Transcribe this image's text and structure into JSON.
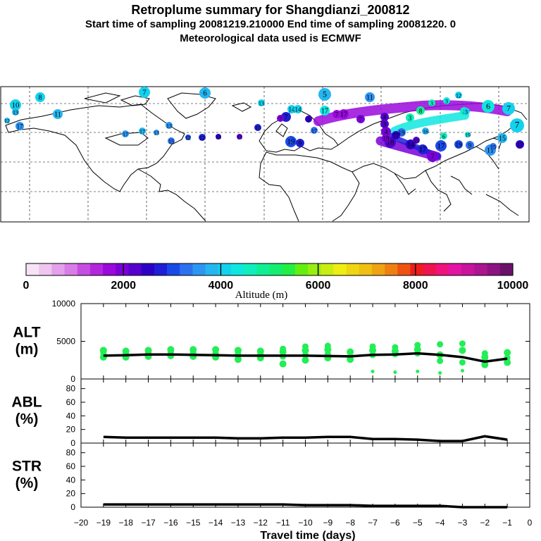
{
  "header": {
    "title": "Retroplume summary for Shangdianzi_200812",
    "subtitle1": "Start time of sampling 20081219.210000      End time of sampling 20081220.      0",
    "subtitle2": "Meteorological data used is ECMWF"
  },
  "colorbar": {
    "label": "Altitude (m)",
    "ticks": [
      "0",
      "2000",
      "4000",
      "6000",
      "8000",
      "10000"
    ],
    "colors": [
      "#f6e3f6",
      "#eec6ee",
      "#e4a0ea",
      "#d77ee6",
      "#c74ee2",
      "#b327dc",
      "#9a08dc",
      "#7a00d8",
      "#5500cc",
      "#2d00c6",
      "#1f1fd8",
      "#1a4ae6",
      "#2c72ee",
      "#2d95f2",
      "#24b6f0",
      "#12d2ee",
      "#10e6e0",
      "#10eebb",
      "#10ee94",
      "#12ee6e",
      "#22ee44",
      "#64ee10",
      "#98ee10",
      "#c8ee12",
      "#eeee12",
      "#eed612",
      "#eec012",
      "#eea412",
      "#ee8012",
      "#ee5212",
      "#ee1c1c",
      "#ee1450",
      "#ee147c",
      "#e214a4",
      "#c8149c",
      "#ac1490",
      "#8c1482",
      "#6a126a"
    ]
  },
  "map_markers": [
    "1",
    "2",
    "3",
    "4",
    "5",
    "6",
    "7",
    "8",
    "9",
    "10",
    "11",
    "12",
    "13",
    "14",
    "15",
    "16",
    "17",
    "18",
    "19"
  ],
  "chart_data": [
    {
      "type": "scatter",
      "panel": "ALT",
      "ylabel_line1": "ALT",
      "ylabel_line2": "(m)",
      "yticks": [
        "0",
        "5000",
        "10000"
      ],
      "ylim": [
        0,
        10000
      ],
      "x": [
        -19,
        -18,
        -17,
        -16,
        -15,
        -14,
        -13,
        -12,
        -11,
        -10,
        -9,
        -8,
        -7,
        -6,
        -5,
        -4,
        -3,
        -2,
        -1
      ],
      "line_values": [
        3100,
        3150,
        3250,
        3250,
        3200,
        3150,
        3100,
        3100,
        3100,
        3100,
        3050,
        3000,
        3200,
        3250,
        3400,
        3200,
        2900,
        2300,
        2700
      ],
      "point_spread": [
        [
          2900,
          3400,
          3800
        ],
        [
          2900,
          3300,
          3700
        ],
        [
          3000,
          3500,
          3800
        ],
        [
          3100,
          3600,
          3900
        ],
        [
          3000,
          3500,
          3900
        ],
        [
          2900,
          3400,
          3900
        ],
        [
          2600,
          3300,
          3800
        ],
        [
          2800,
          3300,
          3700
        ],
        [
          2000,
          3000,
          3600,
          4000
        ],
        [
          2500,
          3200,
          3800,
          4300
        ],
        [
          2800,
          3300,
          3900,
          4400
        ],
        [
          2600,
          3000,
          3600
        ],
        [
          1000,
          3200,
          3800,
          4300
        ],
        [
          900,
          3300,
          3700,
          4200
        ],
        [
          1000,
          3400,
          3900,
          4500
        ],
        [
          800,
          2400,
          3200,
          4600
        ],
        [
          1100,
          2200,
          3800,
          4700
        ],
        [
          1900,
          2400,
          2900,
          3400
        ],
        [
          2200,
          2800,
          3500
        ]
      ],
      "marker_color": "#22ee55",
      "line_color": "#000000"
    },
    {
      "type": "line",
      "panel": "ABL",
      "ylabel_line1": "ABL",
      "ylabel_line2": "(%)",
      "yticks": [
        "0",
        "20",
        "40",
        "60",
        "80"
      ],
      "ylim": [
        0,
        90
      ],
      "x": [
        -19,
        -18,
        -17,
        -16,
        -15,
        -14,
        -13,
        -12,
        -11,
        -10,
        -9,
        -8,
        -7,
        -6,
        -5,
        -4,
        -3,
        -2,
        -1
      ],
      "values": [
        9,
        8,
        8,
        8,
        8,
        8,
        7,
        7,
        8,
        8,
        9,
        9,
        6,
        6,
        5,
        3,
        3,
        10,
        5
      ]
    },
    {
      "type": "line",
      "panel": "STR",
      "ylabel_line1": "STR",
      "ylabel_line2": "(%)",
      "yticks": [
        "0",
        "20",
        "40",
        "60",
        "80"
      ],
      "ylim": [
        0,
        90
      ],
      "x": [
        -19,
        -18,
        -17,
        -16,
        -15,
        -14,
        -13,
        -12,
        -11,
        -10,
        -9,
        -8,
        -7,
        -6,
        -5,
        -4,
        -3,
        -2,
        -1
      ],
      "values": [
        4,
        4,
        4,
        4,
        4,
        4,
        4,
        4,
        4,
        3,
        3,
        3,
        2,
        2,
        2,
        2,
        0,
        0,
        0
      ]
    }
  ],
  "xaxis": {
    "ticks": [
      "−20",
      "−19",
      "−18",
      "−17",
      "−16",
      "−15",
      "−14",
      "−13",
      "−12",
      "−11",
      "−10",
      "−9",
      "−8",
      "−7",
      "−6",
      "−5",
      "−4",
      "−3",
      "−2",
      "−1",
      "0"
    ],
    "label": "Travel time (days)"
  }
}
